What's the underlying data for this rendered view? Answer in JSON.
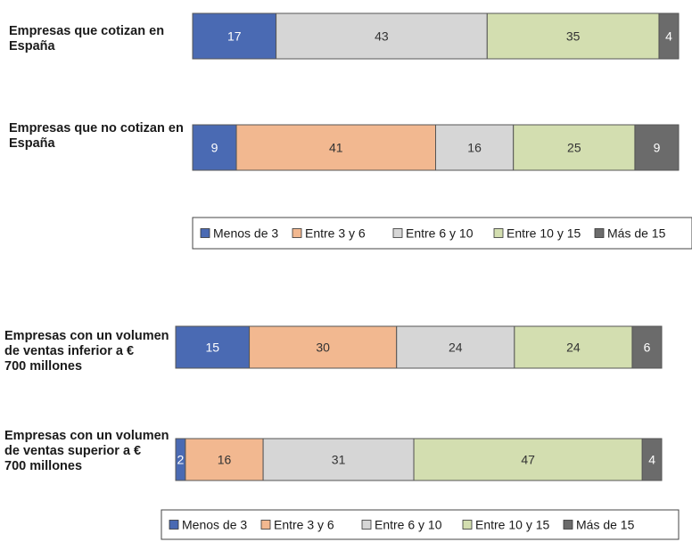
{
  "colors": {
    "Menos de 3": "#4a6ab3",
    "Entre 3 y 6": "#f2b890",
    "Entre 6 y 10": "#d6d6d6",
    "Entre 10 y 15": "#d3deb0",
    "Más de 15": "#6b6b6b",
    "label_on_dark": "#ffffff",
    "label_on_light": "#333333",
    "border": "#555555"
  },
  "chart_data": [
    {
      "type": "bar",
      "orientation": "horizontal",
      "stacked": true,
      "categories": [
        "Empresas que cotizan en España",
        "Empresas que no cotizan en España"
      ],
      "series": [
        {
          "name": "Menos de 3",
          "values": [
            17,
            9
          ]
        },
        {
          "name": "Entre 3 y 6",
          "values": [
            0,
            41
          ]
        },
        {
          "name": "Entre 6 y 10",
          "values": [
            43,
            16
          ]
        },
        {
          "name": "Entre 10 y 15",
          "values": [
            35,
            25
          ]
        },
        {
          "name": "Más de 15",
          "values": [
            4,
            9
          ]
        }
      ],
      "legend": [
        "Menos de 3",
        "Entre 3 y 6",
        "Entre 6 y 10",
        "Entre 10 y 15",
        "Más de 15"
      ],
      "legend_position": "bottom"
    },
    {
      "type": "bar",
      "orientation": "horizontal",
      "stacked": true,
      "categories": [
        "Empresas con un volumen de ventas inferior a € 700 millones",
        "Empresas con un volumen de ventas superior a € 700 millones"
      ],
      "series": [
        {
          "name": "Menos de 3",
          "values": [
            15,
            2
          ]
        },
        {
          "name": "Entre 3 y 6",
          "values": [
            30,
            16
          ]
        },
        {
          "name": "Entre 6 y 10",
          "values": [
            24,
            31
          ]
        },
        {
          "name": "Entre 10 y 15",
          "values": [
            24,
            47
          ]
        },
        {
          "name": "Más de 15",
          "values": [
            6,
            4
          ]
        }
      ],
      "legend": [
        "Menos de 3",
        "Entre 3 y 6",
        "Entre 6 y 10",
        "Entre 10 y 15",
        "Más de 15"
      ],
      "legend_position": "bottom"
    }
  ]
}
